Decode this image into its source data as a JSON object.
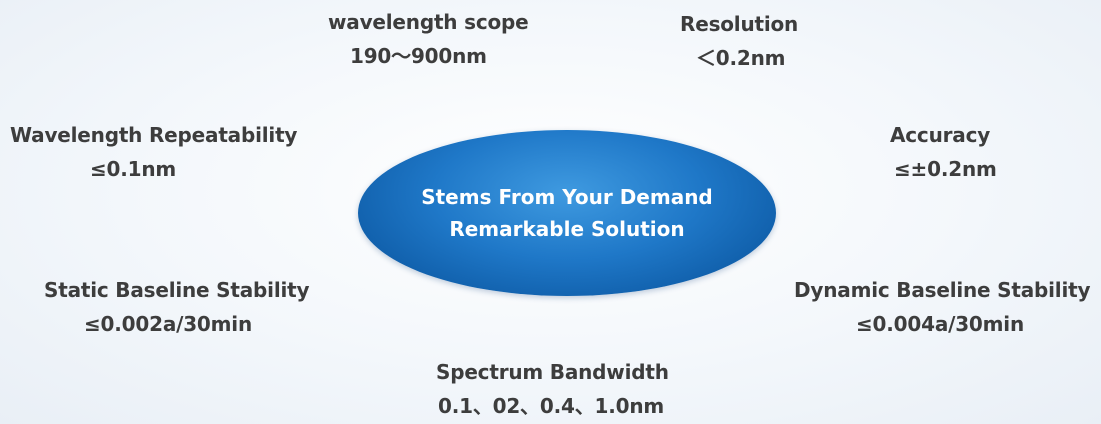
{
  "center": {
    "line1": "Stems From Your Demand",
    "line2": "Remarkable Solution",
    "colors": {
      "fill_light": "#3f9ae0",
      "fill_dark": "#0c4f92",
      "text": "#ffffff"
    }
  },
  "specs": {
    "wavelength_scope": {
      "title": "wavelength scope",
      "value": "190～900nm"
    },
    "resolution": {
      "title": "Resolution",
      "value": "＜0.2nm"
    },
    "wavelength_repeatability": {
      "title": "Wavelength Repeatability",
      "value": "≤0.1nm"
    },
    "accuracy": {
      "title": "Accuracy",
      "value": "≤±0.2nm"
    },
    "static_baseline_stability": {
      "title": "Static Baseline Stability",
      "value": "≤0.002a/30min"
    },
    "dynamic_baseline_stability": {
      "title": "Dynamic Baseline Stability",
      "value": "≤0.004a/30min"
    },
    "spectrum_bandwidth": {
      "title": "Spectrum Bandwidth",
      "value": "0.1、02、0.4、1.0nm"
    }
  },
  "colors": {
    "text": "#3d3d3d",
    "background": "#eef3f9"
  }
}
